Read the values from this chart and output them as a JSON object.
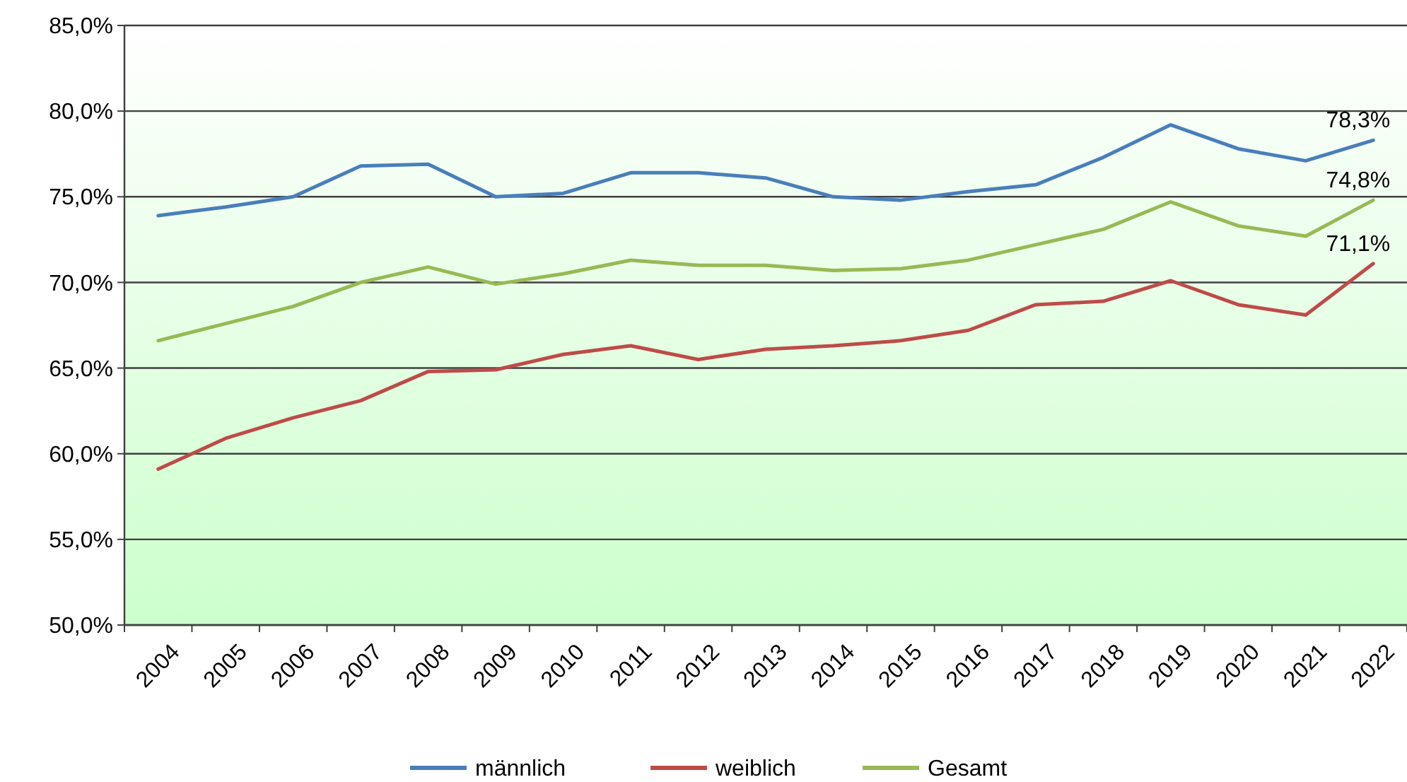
{
  "chart_data": {
    "type": "line",
    "categories": [
      "2004",
      "2005",
      "2006",
      "2007",
      "2008",
      "2009",
      "2010",
      "2011",
      "2012",
      "2013",
      "2014",
      "2015",
      "2016",
      "2017",
      "2018",
      "2019",
      "2020",
      "2021",
      "2022"
    ],
    "series": [
      {
        "name": "männlich",
        "color": "#4a7ebb",
        "values": [
          73.9,
          74.4,
          75.0,
          76.8,
          76.9,
          75.0,
          75.2,
          76.4,
          76.4,
          76.1,
          75.0,
          74.8,
          75.3,
          75.7,
          77.3,
          79.2,
          77.8,
          77.1,
          78.3
        ],
        "value_labels": [
          null,
          null,
          null,
          null,
          null,
          null,
          null,
          null,
          null,
          null,
          null,
          null,
          null,
          null,
          null,
          null,
          null,
          null,
          "78,3%"
        ]
      },
      {
        "name": "weiblich",
        "color": "#be4b48",
        "values": [
          59.1,
          60.9,
          62.1,
          63.1,
          64.8,
          64.9,
          65.8,
          66.3,
          65.5,
          66.1,
          66.3,
          66.6,
          67.2,
          68.7,
          68.9,
          70.1,
          68.7,
          68.1,
          71.1
        ],
        "value_labels": [
          null,
          null,
          null,
          null,
          null,
          null,
          null,
          null,
          null,
          null,
          null,
          null,
          null,
          null,
          null,
          null,
          null,
          null,
          "71,1%"
        ]
      },
      {
        "name": "Gesamt",
        "color": "#98b954",
        "values": [
          66.6,
          67.6,
          68.6,
          70.0,
          70.9,
          69.9,
          70.5,
          71.3,
          71.0,
          71.0,
          70.7,
          70.8,
          71.3,
          72.2,
          73.1,
          74.7,
          73.3,
          72.7,
          74.8
        ],
        "value_labels": [
          null,
          null,
          null,
          null,
          null,
          null,
          null,
          null,
          null,
          null,
          null,
          null,
          null,
          null,
          null,
          null,
          null,
          null,
          "74,8%"
        ]
      }
    ],
    "ylim": [
      50,
      85
    ],
    "yticks": [
      {
        "value": 50,
        "label": "50,0%"
      },
      {
        "value": 55,
        "label": "55,0%"
      },
      {
        "value": 60,
        "label": "60,0%"
      },
      {
        "value": 65,
        "label": "65,0%"
      },
      {
        "value": 70,
        "label": "70,0%"
      },
      {
        "value": 75,
        "label": "75,0%"
      },
      {
        "value": 80,
        "label": "80,0%"
      },
      {
        "value": 85,
        "label": "85,0%"
      }
    ],
    "grid": "y",
    "legend": "bottom",
    "marker": "none",
    "line_style": "solid"
  }
}
